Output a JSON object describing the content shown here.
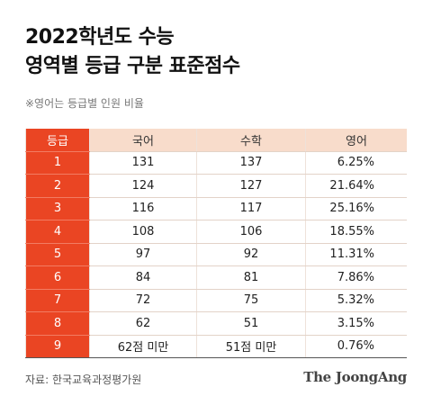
{
  "header": {
    "title": [
      "2022학년도 수능",
      "영역별 등급 구분 표준점수"
    ],
    "note": "※영어는 등급별 인원 비율"
  },
  "table": {
    "columns": [
      "등급",
      "국어",
      "수학",
      "영어"
    ],
    "rows": [
      [
        "1",
        "131",
        "137",
        "6.25%"
      ],
      [
        "2",
        "124",
        "127",
        "21.64%"
      ],
      [
        "3",
        "116",
        "117",
        "25.16%"
      ],
      [
        "4",
        "108",
        "106",
        "18.55%"
      ],
      [
        "5",
        "97",
        "92",
        "11.31%"
      ],
      [
        "6",
        "84",
        "81",
        "7.86%"
      ],
      [
        "7",
        "72",
        "75",
        "5.32%"
      ],
      [
        "8",
        "62",
        "51",
        "3.15%"
      ],
      [
        "9",
        "62점 미만",
        "51점 미만",
        "0.76%"
      ]
    ]
  },
  "footer": {
    "source": "자료: 한국교육과정평가원",
    "logo": "The JoongAng"
  }
}
